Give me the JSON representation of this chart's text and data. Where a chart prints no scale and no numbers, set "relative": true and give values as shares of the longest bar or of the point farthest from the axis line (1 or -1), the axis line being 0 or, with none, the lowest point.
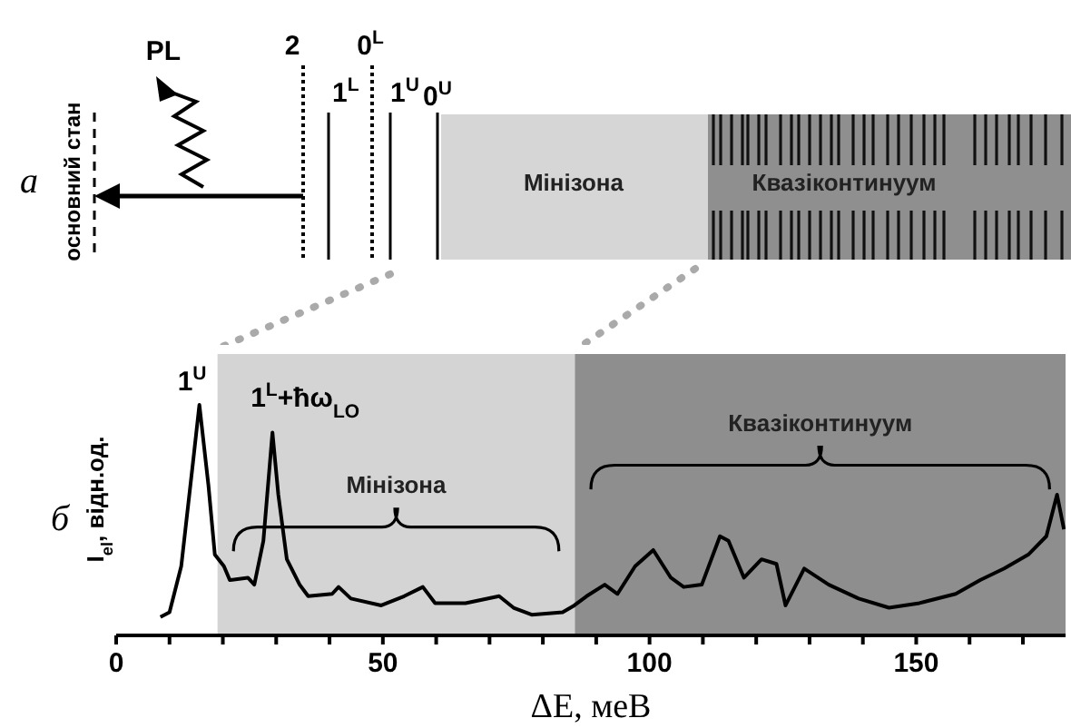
{
  "chart_data": [
    {
      "type": "other",
      "annotations": [
        "a",
        "основний стан",
        "PL",
        "2",
        "1$^{L}$",
        "0$^{L}$",
        "1$^{U}$",
        "0$^{U}$",
        "Мінізона",
        "Квазіконтинуум"
      ]
    },
    {
      "type": "line",
      "relative": true,
      "xlabel": "ΔE, меВ",
      "ylabel": "I$_{el}$, відн.од.",
      "color": "#000000",
      "x": [
        8.3,
        10,
        12.2,
        14.5,
        15.6,
        17.3,
        18.5,
        20.2,
        21.3,
        24.7,
        25.9,
        27.6,
        29.3,
        30.4,
        32,
        34.4,
        36,
        40.5,
        41.7,
        44,
        49.7,
        54,
        57.5,
        59.8,
        65.5,
        71.8,
        74.5,
        77.9,
        83.7,
        85.9,
        88.2,
        91.6,
        94,
        97.3,
        100.7,
        104,
        106.4,
        109.8,
        113.2,
        114.8,
        117.7,
        121,
        123.8,
        125.5,
        129,
        133.6,
        139.2,
        144.9,
        150.6,
        157.4,
        162,
        166.5,
        171,
        174.4,
        176.4,
        177.7
      ],
      "values": [
        0.08,
        0.1,
        0.3,
        0.77,
        1,
        0.65,
        0.35,
        0.3,
        0.24,
        0.25,
        0.22,
        0.41,
        0.88,
        0.61,
        0.33,
        0.22,
        0.17,
        0.18,
        0.21,
        0.16,
        0.13,
        0.17,
        0.21,
        0.14,
        0.14,
        0.17,
        0.12,
        0.09,
        0.1,
        0.13,
        0.17,
        0.22,
        0.18,
        0.3,
        0.37,
        0.25,
        0.21,
        0.22,
        0.43,
        0.41,
        0.25,
        0.33,
        0.31,
        0.13,
        0.29,
        0.22,
        0.16,
        0.12,
        0.14,
        0.18,
        0.24,
        0.29,
        0.35,
        0.43,
        0.61,
        0.46
      ],
      "xlim": [
        0,
        178
      ],
      "xticks": [
        0,
        {
          "value": 10,
          "label": null
        },
        {
          "value": 20,
          "label": null
        },
        {
          "value": 30,
          "label": null
        },
        {
          "value": 40,
          "label": null
        },
        50,
        {
          "value": 60,
          "label": null
        },
        {
          "value": 70,
          "label": null
        },
        {
          "value": 80,
          "label": null
        },
        {
          "value": 90,
          "label": null
        },
        100,
        {
          "value": 110,
          "label": null
        },
        {
          "value": 120,
          "label": null
        },
        {
          "value": 130,
          "label": null
        },
        {
          "value": 140,
          "label": null
        },
        150,
        {
          "value": 160,
          "label": null
        },
        {
          "value": 170,
          "label": null
        }
      ],
      "bands": [
        {
          "axis": "x",
          "from": 19,
          "to": 86,
          "label": "Мінізона",
          "color": "#d4d4d4"
        },
        {
          "axis": "x",
          "from": 86,
          "to": 178,
          "label": "Квазіконтинуум",
          "color": "#8e8e8e"
        }
      ],
      "annotations": [
        "б",
        {
          "text": "1$^{U}$",
          "x": 15.6,
          "y": 1
        },
        {
          "text": "1$^{L}$+ħω$_{LO}$",
          "x": 29.3,
          "y": 0.88
        }
      ]
    }
  ]
}
